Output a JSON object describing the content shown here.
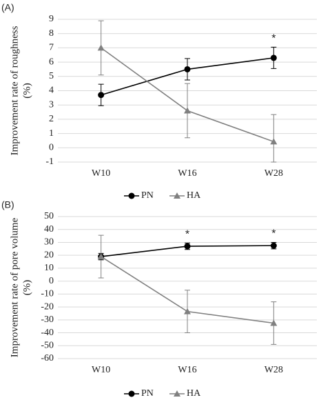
{
  "chart_data": [
    {
      "type": "line",
      "panel": "(A)",
      "ylabel": [
        "Improvement rate of roughness",
        "(%)"
      ],
      "categories": [
        "W10",
        "W16",
        "W28"
      ],
      "series": [
        {
          "name": "PN",
          "color": "#000000",
          "marker": "circle",
          "values": [
            3.7,
            5.5,
            6.3
          ],
          "errors": [
            0.75,
            0.75,
            0.75
          ]
        },
        {
          "name": "HA",
          "color": "#808080",
          "marker": "triangle",
          "values": [
            7.0,
            2.6,
            0.43
          ],
          "errors": [
            1.9,
            1.9,
            1.9
          ]
        }
      ],
      "ylim": [
        -1,
        9
      ],
      "yticks": [
        -1,
        0,
        1,
        2,
        3,
        4,
        5,
        6,
        7,
        8,
        9
      ],
      "grid": true,
      "annotations": [
        {
          "text": "*",
          "category": 2
        }
      ]
    },
    {
      "type": "line",
      "panel": "(B)",
      "ylabel": [
        "Improvement rate of pore volume",
        "(%)"
      ],
      "categories": [
        "W10",
        "W16",
        "W28"
      ],
      "series": [
        {
          "name": "PN",
          "color": "#000000",
          "marker": "circle",
          "values": [
            19,
            27,
            27.5
          ],
          "errors": [
            2.5,
            2.5,
            2.5
          ]
        },
        {
          "name": "HA",
          "color": "#808080",
          "marker": "triangle",
          "values": [
            19,
            -23.5,
            -32.5
          ],
          "errors": [
            16.5,
            16.5,
            16.5
          ]
        }
      ],
      "ylim": [
        -60,
        50
      ],
      "yticks": [
        -60,
        -50,
        -40,
        -30,
        -20,
        -10,
        0,
        10,
        20,
        30,
        40,
        50
      ],
      "grid": true,
      "annotations": [
        {
          "text": "*",
          "category": 1
        },
        {
          "text": "*",
          "category": 2
        }
      ]
    }
  ]
}
